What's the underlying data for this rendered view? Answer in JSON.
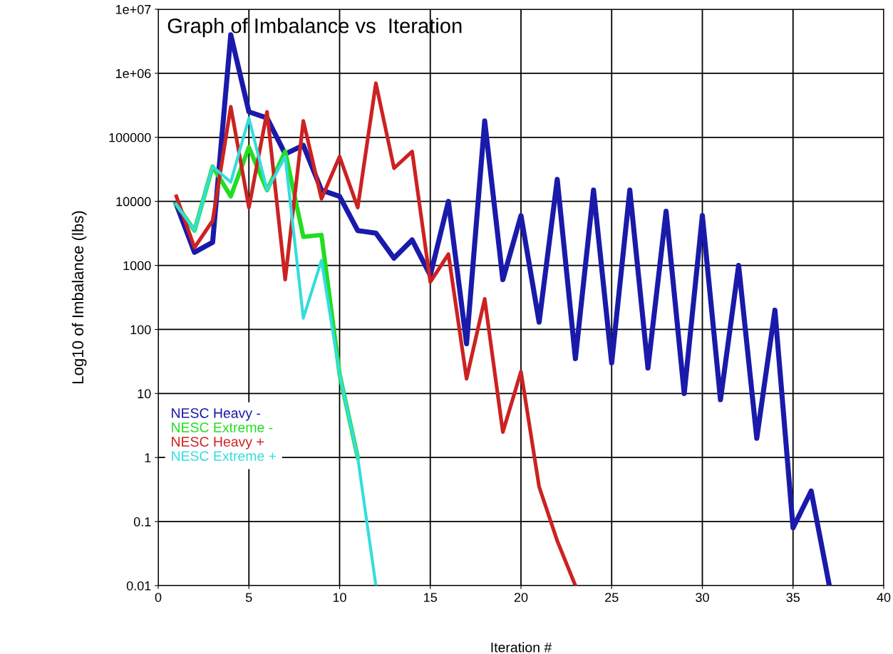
{
  "chart_data": {
    "type": "line",
    "title": "Graph of Imbalance vs  Iteration",
    "xlabel": "Iteration #",
    "ylabel": "Log10 of Imbalance (lbs)",
    "log": "y",
    "grid": true,
    "legend": "left",
    "line_style": "solid",
    "marker": "none",
    "xlim": [
      0,
      40
    ],
    "xticks": [
      0,
      5,
      10,
      15,
      20,
      25,
      30,
      35,
      40
    ],
    "ylim": [
      0.01,
      10000000
    ],
    "yticks": [
      {
        "value": 0.01,
        "label": "0.01"
      },
      {
        "value": 0.1,
        "label": "0.1"
      },
      {
        "value": 1,
        "label": "1"
      },
      {
        "value": 10,
        "label": "10"
      },
      {
        "value": 100,
        "label": "100"
      },
      {
        "value": 1000,
        "label": "1000"
      },
      {
        "value": 10000,
        "label": "10000"
      },
      {
        "value": 100000,
        "label": "100000"
      },
      {
        "value": 1000000,
        "label": "1e+06"
      },
      {
        "value": 10000000,
        "label": "1e+07"
      }
    ],
    "series": [
      {
        "name": "NESC Heavy -",
        "color": "#1a1aaa",
        "x": [
          1,
          2,
          3,
          4,
          5,
          6,
          7,
          8,
          9,
          10,
          11,
          12,
          13,
          14,
          15,
          16,
          17,
          18,
          19,
          20,
          21,
          22,
          23,
          24,
          25,
          26,
          27,
          28,
          29,
          30,
          31,
          32,
          33,
          34,
          35,
          36,
          37
        ],
        "values": [
          9000,
          1600,
          2300,
          4000000,
          250000,
          200000,
          55000,
          75000,
          15000,
          12000,
          3500,
          3200,
          1300,
          2500,
          700,
          10000,
          60,
          180000,
          600,
          6000,
          130,
          22000,
          35,
          15000,
          30,
          15000,
          25,
          7000,
          10,
          6000,
          8,
          1000,
          2,
          200,
          0.08,
          0.3,
          0.01
        ]
      },
      {
        "name": "NESC Extreme -",
        "color": "#22dd22",
        "x": [
          1,
          2,
          3,
          4,
          5,
          6,
          7,
          8,
          9,
          10,
          11
        ],
        "values": [
          9000,
          3500,
          35000,
          12000,
          70000,
          15000,
          60000,
          2800,
          3000,
          20,
          1
        ]
      },
      {
        "name": "NESC Heavy +",
        "color": "#cc2222",
        "x": [
          1,
          2,
          3,
          4,
          5,
          6,
          7,
          8,
          9,
          10,
          11,
          12,
          13,
          14,
          15,
          16,
          17,
          18,
          19,
          20,
          21,
          22,
          23
        ],
        "values": [
          12000,
          1900,
          5000,
          300000,
          8000,
          250000,
          600,
          180000,
          11000,
          50000,
          8000,
          700000,
          33000,
          60000,
          550,
          1500,
          17,
          300,
          2.5,
          22,
          0.35,
          0.05,
          0.01
        ]
      },
      {
        "name": "NESC Extreme +",
        "color": "#33dddd",
        "x": [
          1,
          2,
          3,
          4,
          5,
          6,
          7,
          8,
          9,
          10,
          11,
          12
        ],
        "values": [
          9000,
          3500,
          35000,
          20000,
          200000,
          15000,
          50000,
          150,
          1200,
          20,
          1,
          0.01
        ]
      }
    ]
  }
}
